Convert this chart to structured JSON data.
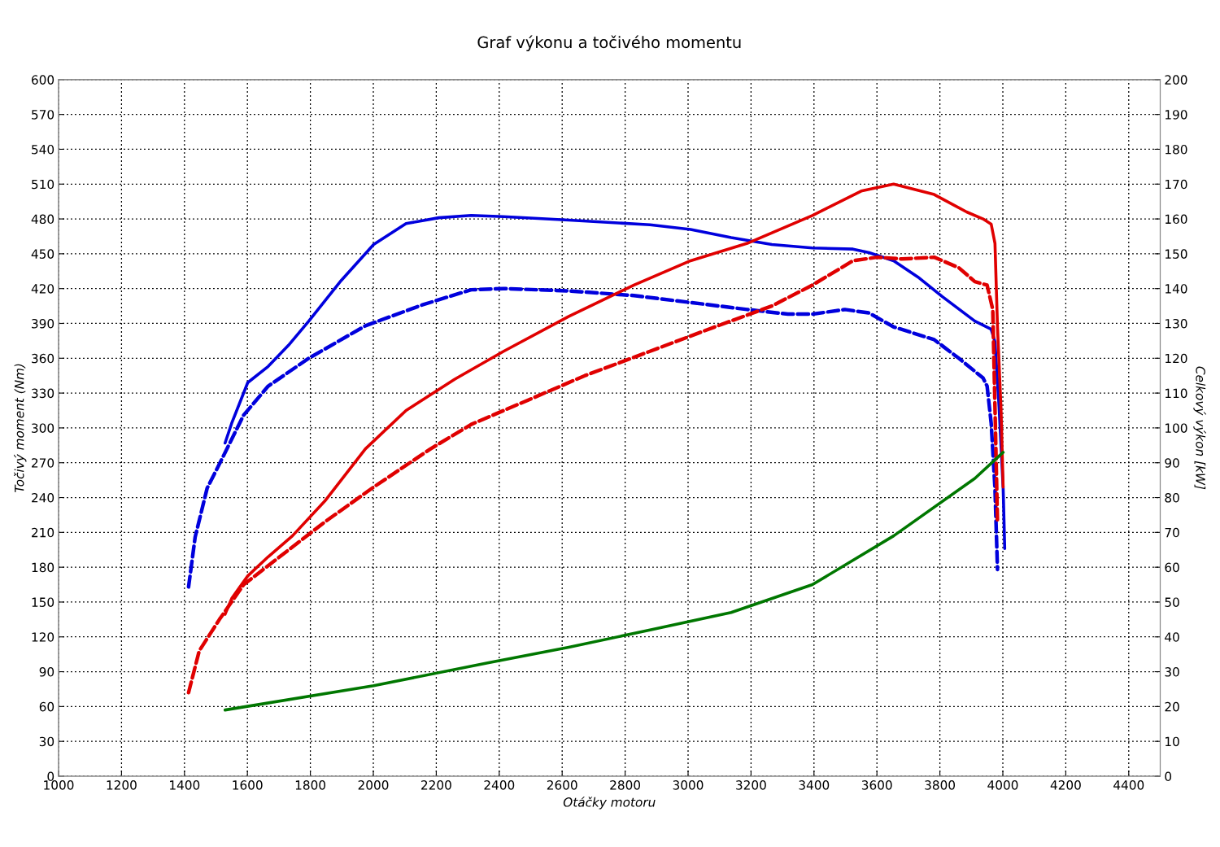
{
  "chart_data": {
    "type": "line",
    "title": "Graf výkonu a točivého momentu",
    "xlabel": "Otáčky motoru",
    "ylabel": "Točivý moment (Nm)",
    "y2label": "Celkový výkon [kW]",
    "xlim": [
      1000,
      4500
    ],
    "xticks": [
      1000,
      1200,
      1400,
      1600,
      1800,
      2000,
      2200,
      2400,
      2600,
      2800,
      3000,
      3200,
      3400,
      3600,
      3800,
      4000,
      4200,
      4400
    ],
    "ylim": [
      0,
      600
    ],
    "yticks": [
      0,
      30,
      60,
      90,
      120,
      150,
      180,
      210,
      240,
      270,
      300,
      330,
      360,
      390,
      420,
      450,
      480,
      510,
      540,
      570,
      600
    ],
    "y2lim": [
      0,
      200
    ],
    "y2ticks": [
      0,
      10,
      20,
      30,
      40,
      50,
      60,
      70,
      80,
      90,
      100,
      110,
      120,
      130,
      140,
      150,
      160,
      170,
      180,
      190,
      200
    ],
    "grid": true,
    "legend": false,
    "marker": "none",
    "series": [
      {
        "color": "#0000dd",
        "line_style": "solid",
        "x": [
          1529,
          1550,
          1601,
          1666,
          1730,
          1795,
          1898,
          2001,
          2104,
          2208,
          2311,
          2414,
          2621,
          2879,
          3008,
          3137,
          3266,
          3395,
          3524,
          3575,
          3653,
          3730,
          3808,
          3911,
          3963,
          3975,
          3988,
          4001,
          4006
        ],
        "values": [
          287,
          304,
          339,
          353,
          371,
          392,
          427,
          458,
          476,
          481,
          483,
          482,
          479,
          475,
          471,
          464,
          458,
          455,
          454,
          451,
          444,
          430,
          413,
          392,
          385,
          374,
          318,
          248,
          196
        ]
      },
      {
        "color": "#0000dd",
        "line_style": "dashed",
        "x": [
          1413,
          1434,
          1472,
          1524,
          1588,
          1666,
          1795,
          1975,
          2156,
          2311,
          2414,
          2621,
          2828,
          3008,
          3188,
          3317,
          3395,
          3498,
          3575,
          3653,
          3782,
          3860,
          3937,
          3950,
          3963,
          3975,
          3983
        ],
        "values": [
          163,
          206,
          248,
          276,
          311,
          336,
          360,
          388,
          406,
          419,
          420,
          418,
          414,
          408,
          402,
          398,
          398,
          402,
          399,
          387,
          376,
          360,
          343,
          336,
          304,
          248,
          178
        ]
      },
      {
        "color": "#e00000",
        "line_style": "solid",
        "axis": "y2",
        "x": [
          1529,
          1550,
          1601,
          1666,
          1743,
          1846,
          1975,
          2104,
          2259,
          2414,
          2621,
          2828,
          3008,
          3188,
          3395,
          3550,
          3653,
          3782,
          3885,
          3937,
          3963,
          3975,
          3983,
          3994,
          4001
        ],
        "values": [
          46.5,
          51,
          57.5,
          63,
          69,
          79,
          94,
          105,
          114,
          122,
          132,
          141,
          148,
          153,
          161,
          168,
          170,
          167,
          162,
          160,
          158.5,
          153,
          129,
          106,
          83
        ]
      },
      {
        "color": "#e00000",
        "line_style": "dashed",
        "axis": "y2",
        "x": [
          1413,
          1447,
          1511,
          1588,
          1717,
          1846,
          2001,
          2182,
          2311,
          2492,
          2672,
          2879,
          3085,
          3266,
          3395,
          3524,
          3601,
          3679,
          3782,
          3860,
          3911,
          3950,
          3968,
          3975,
          3983
        ],
        "values": [
          24,
          36,
          45,
          55,
          64,
          73,
          83,
          94,
          101,
          108,
          115,
          122,
          129,
          135,
          141,
          148,
          149,
          148.5,
          149,
          146,
          142,
          141,
          134,
          106,
          73
        ]
      },
      {
        "color": "#007700",
        "line_style": "solid",
        "axis": "y2",
        "x": [
          1529,
          2001,
          2363,
          2621,
          2879,
          3137,
          3395,
          3653,
          3911,
          4001
        ],
        "values": [
          19,
          26,
          32.5,
          37,
          42,
          47,
          55,
          69,
          85.5,
          93
        ]
      }
    ]
  }
}
